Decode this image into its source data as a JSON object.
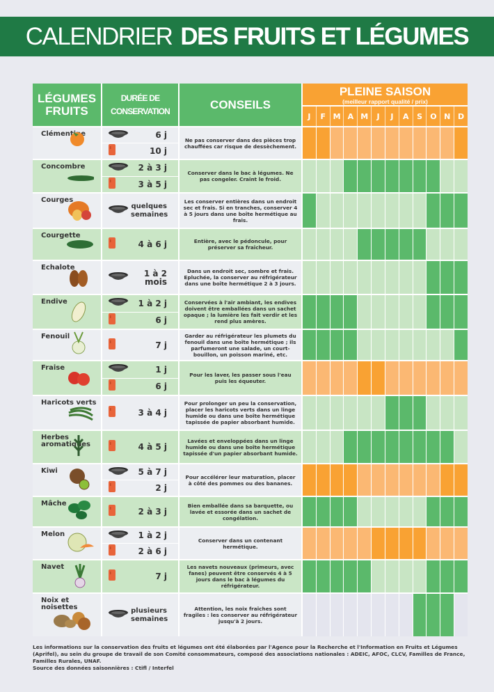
{
  "title": {
    "light": "CALENDRIER",
    "bold": "DES FRUITS ET LÉGUMES"
  },
  "colors": {
    "title_green": "#1f7a45",
    "header_green": "#5bb96b",
    "header_orange": "#f9a233",
    "veg_season": "#5bb96b",
    "veg_off": "#c8e5c4",
    "fruit_season": "#f9a233",
    "fruit_off": "#fbb873",
    "nut_off": "#e4e5ee"
  },
  "header": {
    "name": "LÉGUMES FRUITS",
    "duration": "DURÉE DE CONSERVATION",
    "advice": "CONSEILS",
    "season_title": "PLEINE SAISON",
    "season_subtitle": "(meilleur rapport qualité / prix)",
    "months": [
      "J",
      "F",
      "M",
      "A",
      "M",
      "J",
      "J",
      "A",
      "S",
      "O",
      "N",
      "D"
    ]
  },
  "items": [
    {
      "name": "Clémentine",
      "theme": "fruit",
      "illustration": "clementine-illustration",
      "storage": [
        {
          "icon": "basket-icon",
          "value": "6 j"
        },
        {
          "icon": "fridge-icon",
          "value": "10 j"
        }
      ],
      "advice": "Ne pas conserver dans des pièces trop chauffées  car risque de dessèchement.",
      "season": [
        1,
        2,
        12
      ]
    },
    {
      "name": "Concombre",
      "theme": "veg",
      "illustration": "cucumber-illustration",
      "storage": [
        {
          "icon": "basket-icon",
          "value": "2 à 3 j"
        },
        {
          "icon": "fridge-icon",
          "value": "3 à 5 j"
        }
      ],
      "advice": "Conserver dans le bac à légumes. Ne pas congeler. Craint le froid.",
      "season": [
        4,
        5,
        6,
        7,
        8,
        9,
        10
      ]
    },
    {
      "name": "Courges",
      "theme": "veg",
      "illustration": "squash-illustration",
      "storage": [
        {
          "icon": "basket-icon",
          "value": "quelques semaines"
        }
      ],
      "advice": "Les conserver entières dans un endroit sec et frais. Si en tranches, conserver 4 à 5 jours dans une boîte hermétique au frais.",
      "season": [
        1,
        10,
        11,
        12
      ]
    },
    {
      "name": "Courgette",
      "theme": "veg",
      "illustration": "zucchini-illustration",
      "storage": [
        {
          "icon": "fridge-icon",
          "value": "4 à 6 j"
        }
      ],
      "advice": "Entière, avec le pédoncule, pour préserver sa fraîcheur.",
      "season": [
        5,
        6,
        7,
        8,
        9
      ]
    },
    {
      "name": "Echalote",
      "theme": "veg",
      "illustration": "shallot-illustration",
      "storage": [
        {
          "icon": "basket-icon",
          "value": "1 à 2 mois"
        }
      ],
      "advice": "Dans un endroit sec, sombre et frais. Epluchée, la conserver au réfrigérateur dans une boîte hermétique 2 à 3 jours.",
      "season": [
        10,
        11,
        12
      ]
    },
    {
      "name": "Endive",
      "theme": "veg",
      "illustration": "endive-illustration",
      "storage": [
        {
          "icon": "basket-icon",
          "value": "1 à 2 j"
        },
        {
          "icon": "fridge-icon",
          "value": "6 j"
        }
      ],
      "advice": "Conservées à l'air ambiant, les endives doivent être emballées dans un sachet opaque ; la lumière les fait verdir et les rend plus amères.",
      "season": [
        1,
        2,
        3,
        4,
        10,
        11,
        12
      ]
    },
    {
      "name": "Fenouil",
      "theme": "veg",
      "illustration": "fennel-illustration",
      "storage": [
        {
          "icon": "fridge-icon",
          "value": "7 j"
        }
      ],
      "advice": "Garder au réfrigérateur les plumets du fenouil dans une boîte hermétique ; ils parfumeront une salade, un court-bouillon, un poisson mariné, etc.",
      "season": [
        1,
        2,
        3,
        4,
        12
      ]
    },
    {
      "name": "Fraise",
      "theme": "fruit",
      "illustration": "strawberry-illustration",
      "storage": [
        {
          "icon": "basket-icon",
          "value": "1 j"
        },
        {
          "icon": "fridge-icon",
          "value": "6 j"
        }
      ],
      "advice": "Pour les laver, les passer sous l'eau puis les équeuter.",
      "season": [
        5,
        6
      ]
    },
    {
      "name": "Haricots verts",
      "theme": "veg",
      "illustration": "green-beans-illustration",
      "storage": [
        {
          "icon": "fridge-icon",
          "value": "3 à 4 j"
        }
      ],
      "advice": "Pour prolonger un peu la conservation, placer les haricots verts dans un linge humide ou dans une boîte hermétique tapissée de papier absorbant humide.",
      "season": [
        7,
        8,
        9
      ]
    },
    {
      "name": "Herbes aromatiques",
      "theme": "veg",
      "illustration": "herbs-illustration",
      "storage": [
        {
          "icon": "fridge-icon",
          "value": "4 à 5 j"
        }
      ],
      "advice": "Lavées et enveloppées dans un linge humide ou dans une boîte hermétique tapissée d'un papier absorbant humide.",
      "season": [
        4,
        5,
        6,
        7,
        8,
        9,
        10,
        11
      ]
    },
    {
      "name": "Kiwi",
      "theme": "fruit",
      "illustration": "kiwi-illustration",
      "storage": [
        {
          "icon": "basket-icon",
          "value": "5 à 7 j"
        },
        {
          "icon": "fridge-icon",
          "value": "2 j"
        }
      ],
      "advice": "Pour accélérer leur maturation, placer à côté des pommes ou des bananes.",
      "season": [
        1,
        2,
        3,
        4,
        11,
        12
      ]
    },
    {
      "name": "Mâche",
      "theme": "veg",
      "illustration": "lambs-lettuce-illustration",
      "storage": [
        {
          "icon": "fridge-icon",
          "value": "2 à 3 j"
        }
      ],
      "advice": "Bien emballée dans sa barquette, ou lavée et essorée dans un sachet de congélation.",
      "season": [
        1,
        2,
        3,
        4,
        10,
        11,
        12
      ]
    },
    {
      "name": "Melon",
      "theme": "fruit",
      "illustration": "melon-illustration",
      "storage": [
        {
          "icon": "basket-icon",
          "value": "1 à 2 j"
        },
        {
          "icon": "fridge-icon",
          "value": "2 à 6 j"
        }
      ],
      "advice": "Conserver dans un contenant hermétique.",
      "season": [
        6,
        7,
        8,
        9
      ]
    },
    {
      "name": "Navet",
      "theme": "veg",
      "illustration": "turnip-illustration",
      "storage": [
        {
          "icon": "fridge-icon",
          "value": "7 j"
        }
      ],
      "advice": "Les navets nouveaux (primeurs, avec fanes) peuvent être conservés 4 à 5 jours dans le bac à légumes du réfrigérateur.",
      "season": [
        1,
        2,
        3,
        4,
        5,
        10,
        11,
        12
      ]
    },
    {
      "name": "Noix et noisettes",
      "theme": "nut",
      "illustration": "nuts-illustration",
      "storage": [
        {
          "icon": "basket-icon",
          "value": "plusieurs semaines"
        }
      ],
      "advice": "Attention, les noix fraîches sont fragiles : les conserver au réfrigérateur jusqu'à 2 jours.",
      "season": [
        9,
        10,
        11
      ]
    }
  ],
  "footer": {
    "line1": "Les informations sur la conservation des fruits et légumes ont été élaborées par l'Agence pour la Recherche et l'Information en Fruits et Légumes (Aprifel), au sein du groupe de travail de son Comité consommateurs, composé des associations nationales : ADEIC, AFOC, CLCV, Familles de France, Familles Rurales, UNAF.",
    "line2": "Source des données saisonnières : Ctifl / Interfel"
  }
}
